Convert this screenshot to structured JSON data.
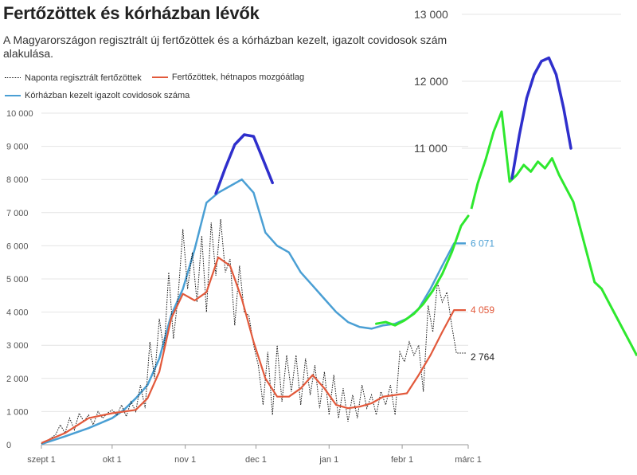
{
  "title": "Fertőzöttek és kórházban lévők",
  "subtitle": [
    "A Magyarországon regisztrált új fertőzöttek és a kórházban kezelt, igazolt covidosok szám",
    "alakulása."
  ],
  "legend": {
    "daily": "Naponta regisztrált fertőzöttek",
    "moving_average": "Fertőzöttek, hétnapos mozgóátlag",
    "hospitalized": "Kórházban kezelt igazolt covidosok száma"
  },
  "colors": {
    "daily": "#111111",
    "moving_average": "#e2593b",
    "hospitalized": "#4a9fd4",
    "overlay_peak": "#2f2fcc",
    "overlay_rise": "#2ee82e",
    "grid": "#e4e4e4"
  },
  "chart_data": [
    {
      "type": "line",
      "title": "Fertőzöttek és kórházban lévők",
      "x_ticks": [
        "szept 1",
        "okt 1",
        "nov 1",
        "dec 1",
        "jan 1",
        "febr 1",
        "márc 1"
      ],
      "y_ticks": [
        0,
        1000,
        2000,
        3000,
        4000,
        5000,
        6000,
        7000,
        8000,
        9000,
        10000
      ],
      "y_tick_labels": [
        "0",
        "1 000",
        "2 000",
        "3 000",
        "4 000",
        "5 000",
        "6 000",
        "7 000",
        "8 000",
        "9 000",
        "10 000"
      ],
      "ylim": [
        0,
        10000
      ],
      "xlim_days": [
        0,
        181
      ],
      "end_labels": {
        "hospitalized": "6 071",
        "moving_average": "4 059",
        "daily": "2 764"
      },
      "series": [
        {
          "name": "Naponta regisztrált fertőzöttek",
          "style": "dotted",
          "days": [
            0,
            3,
            6,
            8,
            10,
            12,
            14,
            16,
            18,
            20,
            22,
            24,
            26,
            28,
            30,
            32,
            34,
            36,
            38,
            40,
            42,
            44,
            46,
            48,
            50,
            52,
            54,
            56,
            58,
            60,
            62,
            64,
            66,
            68,
            70,
            72,
            74,
            76,
            78,
            80,
            82,
            84,
            86,
            88,
            90,
            92,
            94,
            96,
            98,
            100,
            102,
            104,
            106,
            108,
            110,
            112,
            114,
            116,
            118,
            120,
            122,
            124,
            126,
            128,
            130,
            132,
            134,
            136,
            138,
            140,
            142,
            144,
            146,
            148,
            150,
            152,
            154,
            156,
            158,
            160,
            162,
            164,
            166,
            168,
            170,
            172,
            174,
            176,
            178,
            180
          ],
          "values": [
            30,
            150,
            300,
            600,
            350,
            800,
            450,
            950,
            700,
            900,
            600,
            1000,
            800,
            950,
            1050,
            900,
            1200,
            850,
            1300,
            1000,
            1800,
            1100,
            3100,
            2000,
            3800,
            2800,
            5200,
            3200,
            4500,
            6500,
            4700,
            5800,
            4300,
            6300,
            4000,
            6700,
            5100,
            6800,
            5200,
            5600,
            3600,
            5400,
            4000,
            3900,
            3000,
            2400,
            1200,
            2800,
            900,
            3000,
            1300,
            2700,
            1600,
            2700,
            1200,
            2600,
            1500,
            2400,
            1100,
            2200,
            900,
            2100,
            800,
            1700,
            700,
            1500,
            800,
            1800,
            1100,
            1500,
            900,
            1600,
            1200,
            1800,
            900,
            2800,
            2500,
            3100,
            2700,
            3000,
            1600,
            4200,
            3400,
            4900,
            4300,
            4600,
            3600,
            2764,
            2764,
            2764
          ]
        },
        {
          "name": "Fertőzöttek, hétnapos mozgóátlag",
          "style": "solid",
          "days": [
            0,
            10,
            20,
            30,
            40,
            45,
            50,
            55,
            60,
            65,
            70,
            75,
            80,
            85,
            90,
            95,
            100,
            105,
            110,
            115,
            120,
            125,
            130,
            135,
            140,
            145,
            150,
            155,
            160,
            165,
            170,
            175,
            180
          ],
          "values": [
            50,
            350,
            800,
            950,
            1050,
            1400,
            2200,
            3800,
            4550,
            4350,
            4600,
            5650,
            5400,
            4400,
            3100,
            2000,
            1450,
            1450,
            1700,
            2100,
            1700,
            1200,
            1100,
            1150,
            1250,
            1450,
            1500,
            1550,
            2100,
            2700,
            3400,
            4059,
            4059
          ]
        },
        {
          "name": "Kórházban kezelt igazolt covidosok száma",
          "style": "solid",
          "days": [
            0,
            10,
            20,
            30,
            35,
            40,
            45,
            50,
            55,
            60,
            65,
            70,
            75,
            80,
            85,
            90,
            95,
            100,
            105,
            110,
            115,
            120,
            125,
            130,
            135,
            140,
            145,
            150,
            155,
            160,
            165,
            170,
            175,
            180
          ],
          "values": [
            20,
            250,
            500,
            800,
            1050,
            1400,
            1800,
            2600,
            3900,
            4700,
            5900,
            7300,
            7600,
            7800,
            8000,
            7600,
            6400,
            6000,
            5800,
            5200,
            4800,
            4400,
            4000,
            3700,
            3550,
            3500,
            3600,
            3650,
            3800,
            4100,
            4700,
            5400,
            6071,
            6071
          ]
        },
        {
          "name": "",
          "style": "overlay",
          "days": [
            74,
            78,
            82,
            86,
            90,
            94,
            98
          ],
          "values": [
            7580,
            8350,
            9050,
            9350,
            9300,
            8600,
            7900
          ]
        },
        {
          "name": "",
          "style": "overlay",
          "days": [
            142,
            146,
            150,
            154,
            158,
            162,
            166,
            170,
            174,
            178,
            181
          ],
          "values": [
            3650,
            3700,
            3600,
            3750,
            3950,
            4250,
            4650,
            5150,
            5800,
            6600,
            6900
          ]
        }
      ]
    },
    {
      "type": "line",
      "y_ticks": [
        11000,
        12000,
        13000
      ],
      "y_tick_labels": [
        "11 000",
        "12 000",
        "13 000"
      ],
      "ylim": [
        8000,
        13000
      ],
      "series": [
        {
          "name": "",
          "style": "overlay",
          "values": [
            10500,
            10600,
            10750,
            10650,
            10800,
            10700,
            10850,
            10600,
            10400,
            10200,
            9800,
            9400,
            9000,
            8900,
            8700,
            8500,
            8300,
            8100,
            7900
          ]
        },
        {
          "name": "",
          "style": "overlay",
          "values": [
            10550,
            11200,
            11750,
            12100,
            12300,
            12350,
            12100,
            11600,
            11000
          ]
        }
      ]
    }
  ]
}
